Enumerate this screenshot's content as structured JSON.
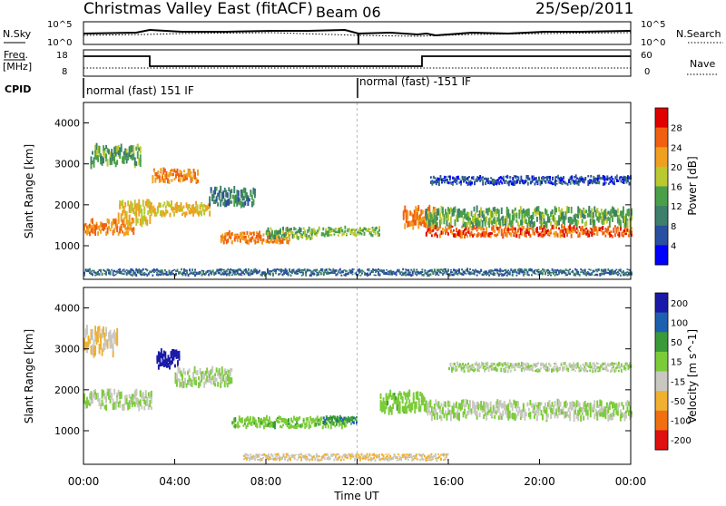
{
  "header": {
    "title": "Christmas Valley East (fitACF)",
    "beam": "Beam 06",
    "date": "25/Sep/2011"
  },
  "noise_panel": {
    "left_label": "N.Sky",
    "right_label": "N.Search",
    "left_ticks": [
      "10^5",
      "10^0"
    ],
    "right_ticks": [
      "10^5",
      "10^0"
    ]
  },
  "freq_panel": {
    "left_label_1": "Freq.",
    "left_label_2": "[MHz]",
    "right_label": "Nave",
    "left_ticks": [
      "18",
      "8"
    ],
    "right_ticks": [
      "60",
      "0"
    ]
  },
  "cpid": {
    "label": "CPID",
    "segments": [
      "normal (fast) 151 IF",
      "normal (fast) -151 IF"
    ]
  },
  "x_axis": {
    "label": "Time UT",
    "ticks": [
      "00:00",
      "04:00",
      "08:00",
      "12:00",
      "16:00",
      "20:00",
      "00:00"
    ]
  },
  "colors": {
    "power_scale": [
      "#0000ff",
      "#2a4fa0",
      "#3d7f6a",
      "#4aa04a",
      "#b9c92f",
      "#f0a020",
      "#f06010",
      "#e00000"
    ],
    "velocity_scale": [
      "#1a1aa8",
      "#1e60b0",
      "#3a9a3a",
      "#7ccc3a",
      "#c8c8c0",
      "#f0b030",
      "#f07010",
      "#e01010"
    ]
  },
  "chart_data": [
    {
      "type": "heatmap",
      "title": "",
      "xlabel": "",
      "ylabel": "Slant Range [km]",
      "ylim": [
        180,
        4500
      ],
      "yticks": [
        "1000",
        "2000",
        "3000",
        "4000"
      ],
      "colorbar": {
        "label": "Power [dB]",
        "ticks": [
          "4",
          "8",
          "12",
          "16",
          "20",
          "24",
          "28"
        ],
        "range": [
          0,
          32
        ]
      },
      "bands": [
        {
          "x0": 0.0,
          "x1": 2.2,
          "y": 1450,
          "w": 350,
          "value": 24
        },
        {
          "x0": 0.3,
          "x1": 2.5,
          "y": 3200,
          "w": 450,
          "value": 14
        },
        {
          "x0": 1.5,
          "x1": 3.0,
          "y": 1800,
          "w": 500,
          "value": 20
        },
        {
          "x0": 3.0,
          "x1": 5.0,
          "y": 2700,
          "w": 300,
          "value": 24
        },
        {
          "x0": 2.8,
          "x1": 5.5,
          "y": 1900,
          "w": 300,
          "value": 20
        },
        {
          "x0": 5.5,
          "x1": 7.5,
          "y": 2200,
          "w": 400,
          "value": 10
        },
        {
          "x0": 6.0,
          "x1": 9.0,
          "y": 1200,
          "w": 250,
          "value": 24
        },
        {
          "x0": 8.0,
          "x1": 10.0,
          "y": 1300,
          "w": 250,
          "value": 14
        },
        {
          "x0": 10.0,
          "x1": 13.0,
          "y": 1350,
          "w": 200,
          "value": 16
        },
        {
          "x0": 14.0,
          "x1": 15.5,
          "y": 1700,
          "w": 450,
          "value": 24
        },
        {
          "x0": 15.0,
          "x1": 24.0,
          "y": 1350,
          "w": 250,
          "value": 26
        },
        {
          "x0": 15.0,
          "x1": 24.0,
          "y": 1700,
          "w": 400,
          "value": 14
        },
        {
          "x0": 15.2,
          "x1": 24.0,
          "y": 2600,
          "w": 200,
          "value": 6
        },
        {
          "x0": 0.0,
          "x1": 24.0,
          "y": 350,
          "w": 150,
          "value": 8
        }
      ]
    },
    {
      "type": "heatmap",
      "title": "",
      "xlabel": "Time UT",
      "ylabel": "Slant Range [km]",
      "ylim": [
        180,
        4500
      ],
      "yticks": [
        "1000",
        "2000",
        "3000",
        "4000"
      ],
      "colorbar": {
        "label": "Velocity [m s^-1]",
        "ticks": [
          "200",
          "100",
          "50",
          "15",
          "-15",
          "-50",
          "-100",
          "-200"
        ],
        "range": [
          -250,
          250
        ]
      },
      "bands": [
        {
          "x0": 0.0,
          "x1": 3.0,
          "y": 1750,
          "w": 400,
          "value": 0
        },
        {
          "x0": 0.0,
          "x1": 1.5,
          "y": 3200,
          "w": 600,
          "value": -60
        },
        {
          "x0": 3.2,
          "x1": 4.2,
          "y": 2750,
          "w": 400,
          "value": 220
        },
        {
          "x0": 4.0,
          "x1": 6.5,
          "y": 2300,
          "w": 400,
          "value": 0
        },
        {
          "x0": 6.5,
          "x1": 11.5,
          "y": 1200,
          "w": 250,
          "value": 40
        },
        {
          "x0": 10.5,
          "x1": 12.0,
          "y": 1250,
          "w": 200,
          "value": 110
        },
        {
          "x0": 13.0,
          "x1": 15.0,
          "y": 1700,
          "w": 450,
          "value": 40
        },
        {
          "x0": 15.0,
          "x1": 24.0,
          "y": 1500,
          "w": 400,
          "value": 0
        },
        {
          "x0": 16.0,
          "x1": 24.0,
          "y": 2550,
          "w": 200,
          "value": 0
        },
        {
          "x0": 7.0,
          "x1": 16.0,
          "y": 350,
          "w": 150,
          "value": -60
        }
      ]
    }
  ]
}
